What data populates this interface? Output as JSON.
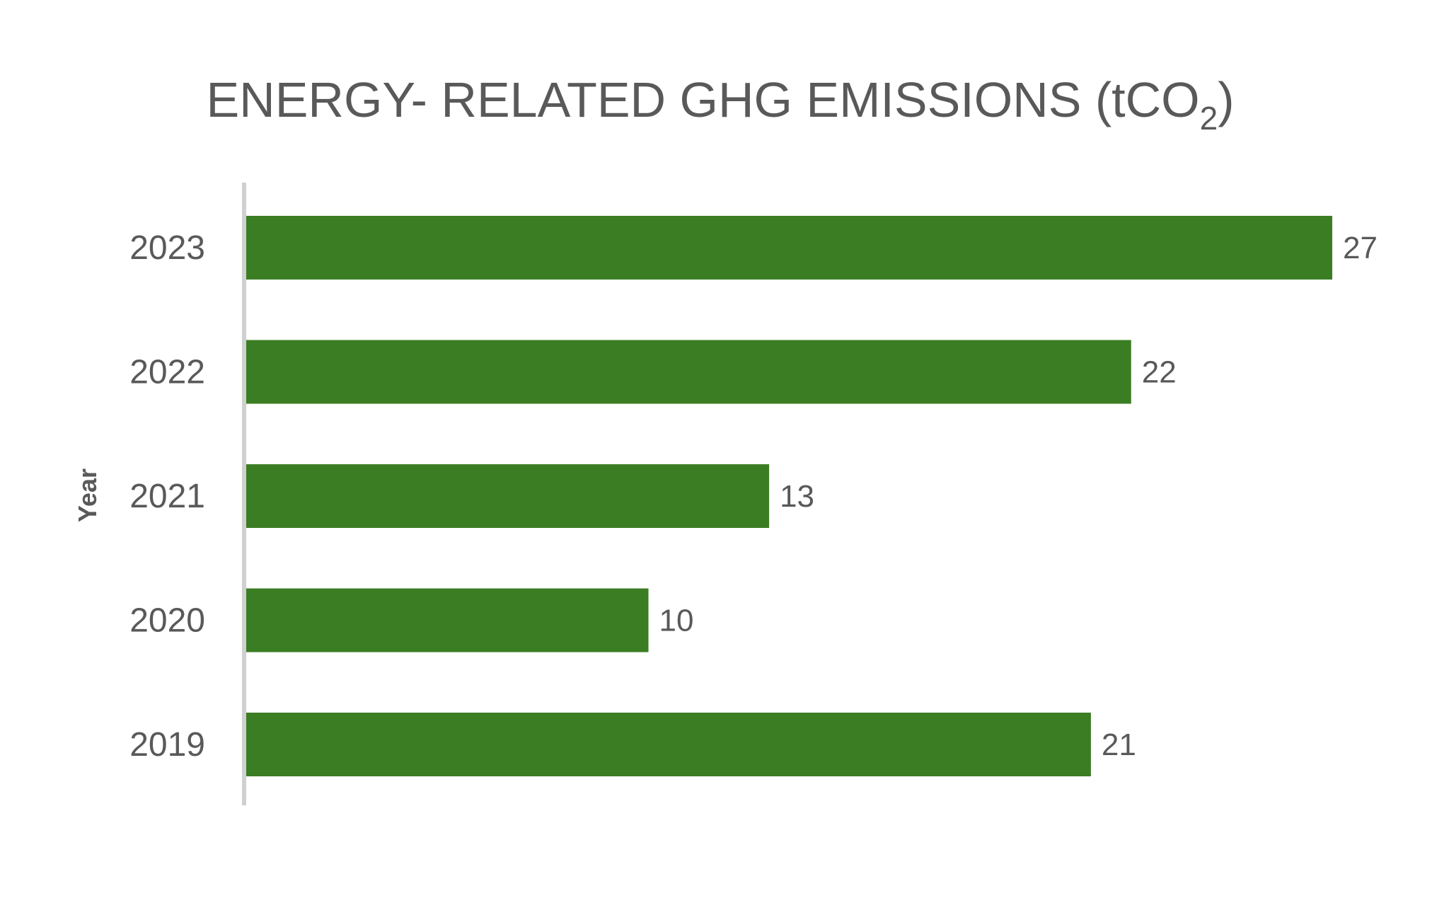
{
  "chart_data": {
    "type": "bar",
    "orientation": "horizontal",
    "title": "ENERGY- RELATED GHG EMISSIONS (tCO",
    "title_subscript": "2",
    "title_suffix": ")",
    "xlabel": "",
    "ylabel": "Year",
    "categories": [
      "2023",
      "2022",
      "2021",
      "2020",
      "2019"
    ],
    "values": [
      27,
      22,
      13,
      10,
      21
    ],
    "value_labels": [
      "27",
      "22",
      "13",
      "10",
      "21"
    ],
    "xlim": [
      0,
      27
    ],
    "grid": false,
    "legend": "none",
    "colors": {
      "bar": "#3b7d23",
      "text": "#595959",
      "axis": "#d0d0d0"
    }
  }
}
